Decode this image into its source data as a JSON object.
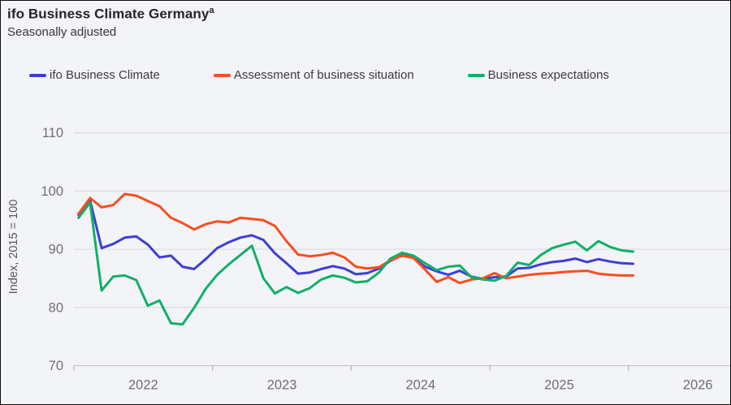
{
  "header": {
    "title": "ifo Business Climate Germany",
    "title_superscript": "a",
    "subtitle": "Seasonally adjusted"
  },
  "legend": [
    {
      "label": "ifo Business Climate",
      "color": "#3e3ed6"
    },
    {
      "label": "Assessment of business situation",
      "color": "#fb4d1d"
    },
    {
      "label": "Business expectations",
      "color": "#0fb068"
    }
  ],
  "colors": {
    "background": "#f3f4f8",
    "gridline": "#dcdce2",
    "axis_line": "#c6c6ce",
    "tick_mark": "#b2b2ba",
    "tick_text": "#6e6e78",
    "axis_title_text": "#55555c"
  },
  "chart_data": {
    "type": "line",
    "title": "ifo Business Climate Germany",
    "subtitle": "Seasonally adjusted",
    "ylabel": "Index, 2015 = 100",
    "xlabel": "",
    "x_unit": "month",
    "x_start": "2022-01",
    "x_axis_ticks": [
      "2022",
      "2023",
      "2024",
      "2025",
      "2026"
    ],
    "y_ticks": [
      70,
      80,
      90,
      100,
      110
    ],
    "ylim": [
      70,
      113.5
    ],
    "xlim_years": [
      2022.0,
      2026.75
    ],
    "grid": "horizontal",
    "legend_position": "top",
    "series": [
      {
        "name": "ifo Business Climate",
        "color": "#3e3ed6",
        "values": [
          95.9,
          98.4,
          90.2,
          90.9,
          92.0,
          92.2,
          90.8,
          88.6,
          88.9,
          87.0,
          86.6,
          88.3,
          90.2,
          91.2,
          92.0,
          92.4,
          91.6,
          89.3,
          87.6,
          85.8,
          86.0,
          86.6,
          87.1,
          86.7,
          85.7,
          85.9,
          86.7,
          88.0,
          89.0,
          88.5,
          87.0,
          86.2,
          85.6,
          86.3,
          85.3,
          84.9,
          85.2,
          85.3,
          86.7,
          86.8,
          87.4,
          87.8,
          88.0,
          88.4,
          87.8,
          88.3,
          87.9,
          87.6,
          87.5
        ]
      },
      {
        "name": "Assessment of business situation",
        "color": "#fb4d1d",
        "values": [
          96.1,
          98.8,
          97.2,
          97.6,
          99.5,
          99.2,
          98.3,
          97.4,
          95.4,
          94.5,
          93.4,
          94.3,
          94.8,
          94.6,
          95.4,
          95.2,
          95.0,
          94.0,
          91.4,
          89.1,
          88.8,
          89.0,
          89.4,
          88.6,
          87.0,
          86.7,
          86.9,
          88.1,
          88.9,
          88.5,
          86.5,
          84.4,
          85.2,
          84.2,
          84.8,
          85.0,
          85.9,
          85.0,
          85.3,
          85.6,
          85.8,
          85.9,
          86.1,
          86.2,
          86.3,
          85.8,
          85.6,
          85.5,
          85.5
        ]
      },
      {
        "name": "Business expectations",
        "color": "#0fb068",
        "values": [
          95.4,
          98.0,
          82.9,
          85.3,
          85.5,
          84.7,
          80.3,
          81.2,
          77.3,
          77.1,
          79.9,
          83.2,
          85.6,
          87.4,
          89.0,
          90.6,
          85.0,
          82.4,
          83.5,
          82.5,
          83.3,
          84.8,
          85.5,
          85.1,
          84.3,
          84.5,
          86.0,
          88.4,
          89.4,
          88.9,
          87.6,
          86.4,
          87.0,
          87.2,
          85.2,
          84.8,
          84.6,
          85.4,
          87.7,
          87.3,
          89.0,
          90.2,
          90.8,
          91.3,
          89.8,
          91.4,
          90.4,
          89.8,
          89.6
        ]
      }
    ]
  }
}
